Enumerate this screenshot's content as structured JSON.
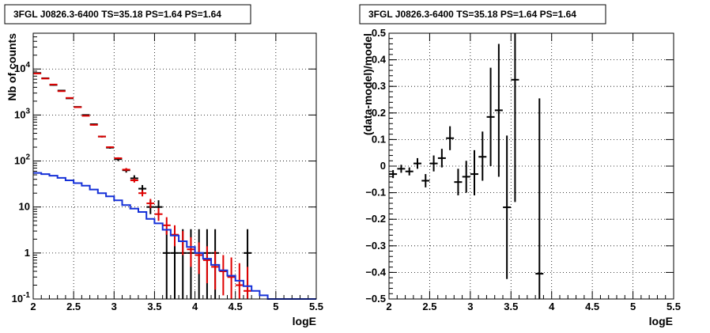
{
  "colors": {
    "data": "#000000",
    "model_total": "#e00000",
    "model_component": "#1530d8"
  },
  "chart_data": [
    {
      "type": "line",
      "title": "3FGL J0826.3-6400 TS=35.18 PS=1.64 PS=1.64",
      "xlabel": "logE",
      "ylabel": "Nb of counts",
      "xlim": [
        2,
        5.5
      ],
      "ylim": [
        0.1,
        60000
      ],
      "yscale": "log",
      "grid": true,
      "x_ticks": [
        "2",
        "2.5",
        "3",
        "3.5",
        "4",
        "4.5",
        "5",
        "5.5"
      ],
      "y_ticks": [
        {
          "value": 0.1,
          "base": "10",
          "exp": "-1"
        },
        {
          "value": 1,
          "base": "1",
          "exp": ""
        },
        {
          "value": 10,
          "base": "10",
          "exp": ""
        },
        {
          "value": 100,
          "base": "10",
          "exp": "2"
        },
        {
          "value": 1000,
          "base": "10",
          "exp": "3"
        },
        {
          "value": 10000,
          "base": "10",
          "exp": "4"
        }
      ],
      "bin_edges": [
        2.0,
        2.1,
        2.2,
        2.3,
        2.4,
        2.5,
        2.6,
        2.7,
        2.8,
        2.9,
        3.0,
        3.1,
        3.2,
        3.3,
        3.4,
        3.5,
        3.6,
        3.7,
        3.8,
        3.9,
        4.0,
        4.1,
        4.2,
        4.3,
        4.4,
        4.5,
        4.6,
        4.7,
        4.8,
        4.9,
        5.0,
        5.1,
        5.2,
        5.3,
        5.4,
        5.5
      ],
      "series": [
        {
          "style": "errorbars",
          "color_key": "data",
          "x": [
            2.05,
            2.15,
            2.25,
            2.35,
            2.45,
            2.55,
            2.65,
            2.75,
            2.85,
            2.95,
            3.05,
            3.15,
            3.25,
            3.35,
            3.45,
            3.55,
            3.65,
            3.75,
            3.85,
            3.95,
            4.05,
            4.15,
            4.25,
            4.35,
            4.45,
            4.55,
            4.65
          ],
          "y": [
            8200,
            6300,
            4500,
            3400,
            2300,
            1500,
            1000,
            630,
            340,
            195,
            110,
            63,
            42,
            25,
            10,
            10,
            1,
            1,
            1,
            1,
            1,
            1,
            1,
            1,
            1,
            1,
            1
          ],
          "y_lo": [
            8000,
            6100,
            4350,
            3300,
            2250,
            1460,
            970,
            610,
            325,
            185,
            100,
            56,
            36,
            20,
            7,
            7,
            0.1,
            0.1,
            0.1,
            0.1,
            0.1,
            0.1,
            0.1,
            0.1,
            0.1,
            0.1,
            0.1
          ],
          "y_hi": [
            8400,
            6500,
            4650,
            3500,
            2350,
            1540,
            1030,
            650,
            355,
            205,
            120,
            70,
            49,
            30,
            14,
            14,
            3.3,
            3.3,
            3.3,
            3.3,
            3.3,
            3.3,
            3.3,
            3.3,
            3.3,
            3.3,
            3.3
          ],
          "shown": [
            true,
            true,
            true,
            true,
            true,
            true,
            true,
            true,
            true,
            true,
            true,
            true,
            true,
            true,
            true,
            true,
            true,
            true,
            true,
            true,
            true,
            true,
            true,
            false,
            false,
            false,
            true
          ]
        },
        {
          "style": "errorbars",
          "color_key": "model_total",
          "x": [
            2.05,
            2.15,
            2.25,
            2.35,
            2.45,
            2.55,
            2.65,
            2.75,
            2.85,
            2.95,
            3.05,
            3.15,
            3.25,
            3.35,
            3.45,
            3.55,
            3.65,
            3.75,
            3.85,
            3.95,
            4.05,
            4.15,
            4.25,
            4.35,
            4.45,
            4.55,
            4.65
          ],
          "y": [
            8000,
            6200,
            4600,
            3300,
            2350,
            1480,
            960,
            610,
            340,
            200,
            115,
            65,
            38,
            20,
            12,
            7,
            4,
            2.5,
            1.8,
            1.2,
            0.9,
            0.7,
            0.5,
            0.4,
            0.3,
            0.2,
            0.15
          ],
          "y_lo": [
            7900,
            6100,
            4500,
            3250,
            2300,
            1450,
            940,
            590,
            330,
            192,
            110,
            60,
            34,
            17,
            9.5,
            5,
            2.5,
            1.4,
            0.9,
            0.5,
            0.35,
            0.22,
            0.16,
            0.12,
            0.1,
            0.1,
            0.1
          ],
          "y_hi": [
            8100,
            6300,
            4700,
            3350,
            2400,
            1510,
            980,
            630,
            350,
            208,
            120,
            70,
            42,
            23,
            15,
            9.5,
            6,
            4,
            3,
            2.2,
            1.7,
            1.4,
            1.1,
            0.9,
            0.8,
            0.6,
            0.5
          ]
        },
        {
          "style": "step",
          "color_key": "model_component",
          "values": [
            55,
            52,
            48,
            43,
            38,
            33,
            29,
            24,
            20,
            17,
            14,
            11,
            9.2,
            7.8,
            5.5,
            4.4,
            3.2,
            2.4,
            1.8,
            1.35,
            1.0,
            0.75,
            0.55,
            0.42,
            0.32,
            0.25,
            0.19,
            0.15,
            0.12,
            0.1,
            0.1,
            0.1,
            0.1,
            0.1,
            0.1
          ]
        }
      ]
    },
    {
      "type": "scatter",
      "title": "3FGL J0826.3-6400 TS=35.18 PS=1.64 PS=1.64",
      "xlabel": "logE",
      "ylabel": "(data-model)/model",
      "xlim": [
        2,
        5.5
      ],
      "ylim": [
        -0.5,
        0.5
      ],
      "grid": true,
      "x_ticks": [
        "2",
        "2.5",
        "3",
        "3.5",
        "4",
        "4.5",
        "5",
        "5.5"
      ],
      "y_ticks": [
        {
          "value": -0.5,
          "label": "−0.5"
        },
        {
          "value": -0.4,
          "label": "−0.4"
        },
        {
          "value": -0.3,
          "label": "−0.3"
        },
        {
          "value": -0.2,
          "label": "−0.2"
        },
        {
          "value": -0.1,
          "label": "−0.1"
        },
        {
          "value": 0,
          "label": "0"
        },
        {
          "value": 0.1,
          "label": "0.1"
        },
        {
          "value": 0.2,
          "label": "0.2"
        },
        {
          "value": 0.3,
          "label": "0.3"
        },
        {
          "value": 0.4,
          "label": "0.4"
        },
        {
          "value": 0.5,
          "label": "0.5"
        }
      ],
      "series": [
        {
          "style": "errorbars",
          "color_key": "data",
          "x": [
            2.05,
            2.15,
            2.25,
            2.35,
            2.45,
            2.55,
            2.65,
            2.75,
            2.85,
            2.95,
            3.05,
            3.15,
            3.25,
            3.35,
            3.45,
            3.55,
            3.85
          ],
          "y": [
            -0.03,
            -0.01,
            -0.02,
            0.01,
            -0.055,
            0.01,
            0.03,
            0.105,
            -0.06,
            -0.04,
            -0.03,
            0.035,
            0.185,
            0.21,
            -0.155,
            0.325,
            -0.405
          ],
          "y_lo": [
            -0.045,
            -0.025,
            -0.035,
            -0.01,
            -0.08,
            -0.02,
            -0.005,
            0.06,
            -0.11,
            -0.1,
            -0.11,
            -0.055,
            0.0,
            -0.04,
            -0.425,
            -0.135,
            -0.5
          ],
          "y_hi": [
            -0.015,
            0.005,
            -0.005,
            0.03,
            -0.03,
            0.04,
            0.065,
            0.15,
            -0.01,
            0.02,
            0.06,
            0.13,
            0.37,
            0.46,
            0.115,
            0.5,
            0.255
          ]
        }
      ]
    }
  ]
}
